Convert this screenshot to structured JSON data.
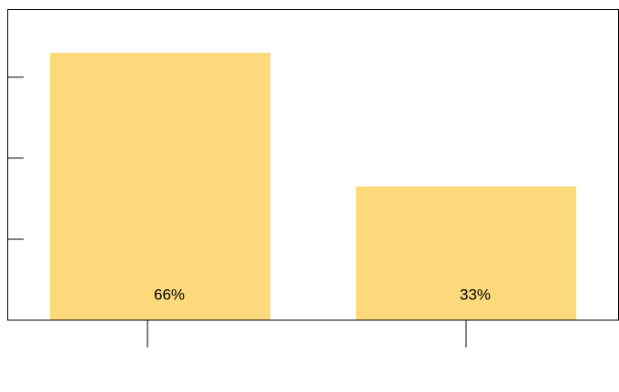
{
  "chart_data": {
    "type": "bar",
    "categories": [
      null,
      null
    ],
    "values": [
      66,
      33
    ],
    "value_labels": [
      "66%",
      "33%"
    ],
    "color": "#fcd97a",
    "ylim": [
      0,
      76.8
    ],
    "yticks": [
      20,
      40,
      60
    ]
  }
}
